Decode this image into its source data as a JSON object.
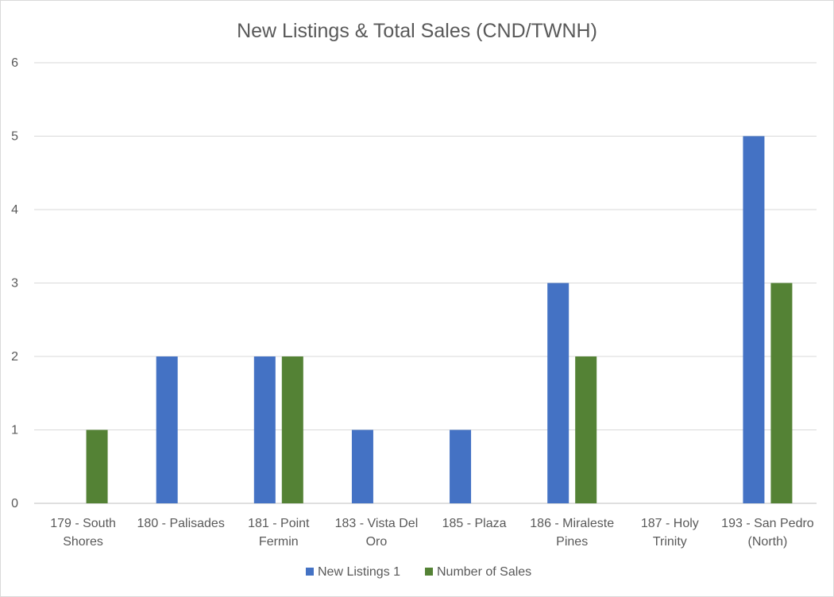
{
  "chart_data": {
    "type": "bar",
    "title": "New Listings & Total Sales (CND/TWNH)",
    "xlabel": "",
    "ylabel": "",
    "ylim": [
      0,
      6
    ],
    "yticks": [
      0,
      1,
      2,
      3,
      4,
      5,
      6
    ],
    "grid": true,
    "legend_position": "bottom",
    "categories": [
      [
        "179 - South",
        "Shores"
      ],
      [
        "180 - Palisades"
      ],
      [
        "181 - Point",
        "Fermin"
      ],
      [
        "183 - Vista Del",
        "Oro"
      ],
      [
        "185 - Plaza"
      ],
      [
        "186 - Miraleste",
        "Pines"
      ],
      [
        "187 - Holy",
        "Trinity"
      ],
      [
        "193 - San Pedro",
        "(North)"
      ]
    ],
    "series": [
      {
        "name": "New Listings 1",
        "color": "#4472c4",
        "values": [
          0,
          2,
          2,
          1,
          1,
          3,
          0,
          5
        ]
      },
      {
        "name": "Number of Sales",
        "color": "#548235",
        "values": [
          1,
          0,
          2,
          0,
          0,
          2,
          0,
          3
        ]
      }
    ]
  }
}
